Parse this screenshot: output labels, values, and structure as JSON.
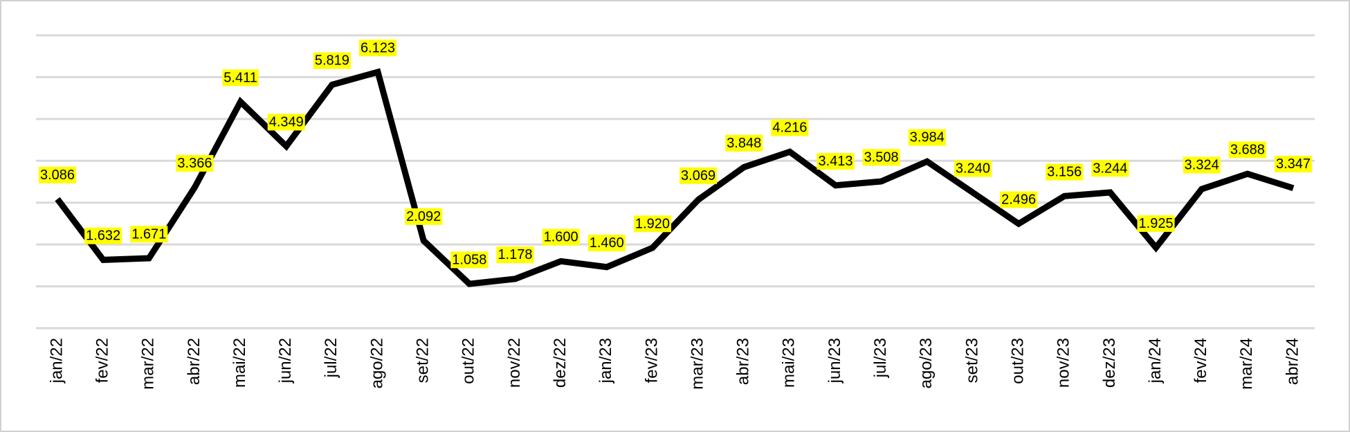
{
  "chart_data": {
    "type": "line",
    "categories": [
      "jan/22",
      "fev/22",
      "mar/22",
      "abr/22",
      "mai/22",
      "jun/22",
      "jul/22",
      "ago/22",
      "set/22",
      "out/22",
      "nov/22",
      "dez/22",
      "jan/23",
      "fev/23",
      "mar/23",
      "abr/23",
      "mai/23",
      "jun/23",
      "jul/23",
      "ago/23",
      "set/23",
      "out/23",
      "nov/23",
      "dez/23",
      "jan/24",
      "fev/24",
      "mar/24",
      "abr/24"
    ],
    "values": [
      3086,
      1632,
      1671,
      3366,
      5411,
      4349,
      5819,
      6123,
      2092,
      1058,
      1178,
      1600,
      1460,
      1920,
      3069,
      3848,
      4216,
      3413,
      3508,
      3984,
      3240,
      2496,
      3156,
      3244,
      1925,
      3324,
      3688,
      3347
    ],
    "value_labels": [
      "3.086",
      "1.632",
      "1.671",
      "3.366",
      "5.411",
      "4.349",
      "5.819",
      "6.123",
      "2.092",
      "1.058",
      "1.178",
      "1.600",
      "1.460",
      "1.920",
      "3.069",
      "3.848",
      "4.216",
      "3.413",
      "3.508",
      "3.984",
      "3.240",
      "2.496",
      "3.156",
      "3.244",
      "1.925",
      "3.324",
      "3.688",
      "3.347"
    ],
    "color": "#000000",
    "ylim": [
      0,
      7000
    ],
    "yticks": [
      0,
      1000,
      2000,
      3000,
      4000,
      5000,
      6000,
      7000
    ],
    "grid": true
  }
}
